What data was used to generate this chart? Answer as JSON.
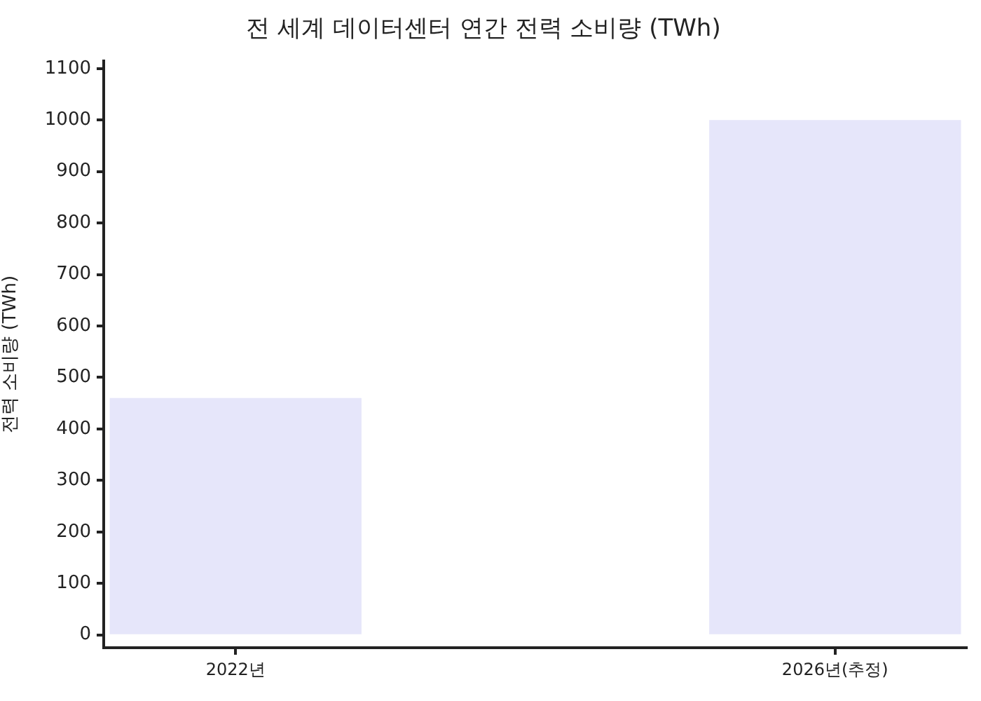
{
  "chart_data": {
    "type": "bar",
    "title": "전 세계 데이터센터 연간 전력 소비량 (TWh)",
    "ylabel": "전력 소비량 (TWh)",
    "categories": [
      "2022년",
      "2026년(추정)"
    ],
    "values": [
      460,
      1000
    ],
    "color": "#e6e6fa",
    "ylim": [
      -25,
      1115
    ],
    "yticks": [
      0,
      100,
      200,
      300,
      400,
      500,
      600,
      700,
      800,
      900,
      1000,
      1100
    ],
    "grid": false
  }
}
